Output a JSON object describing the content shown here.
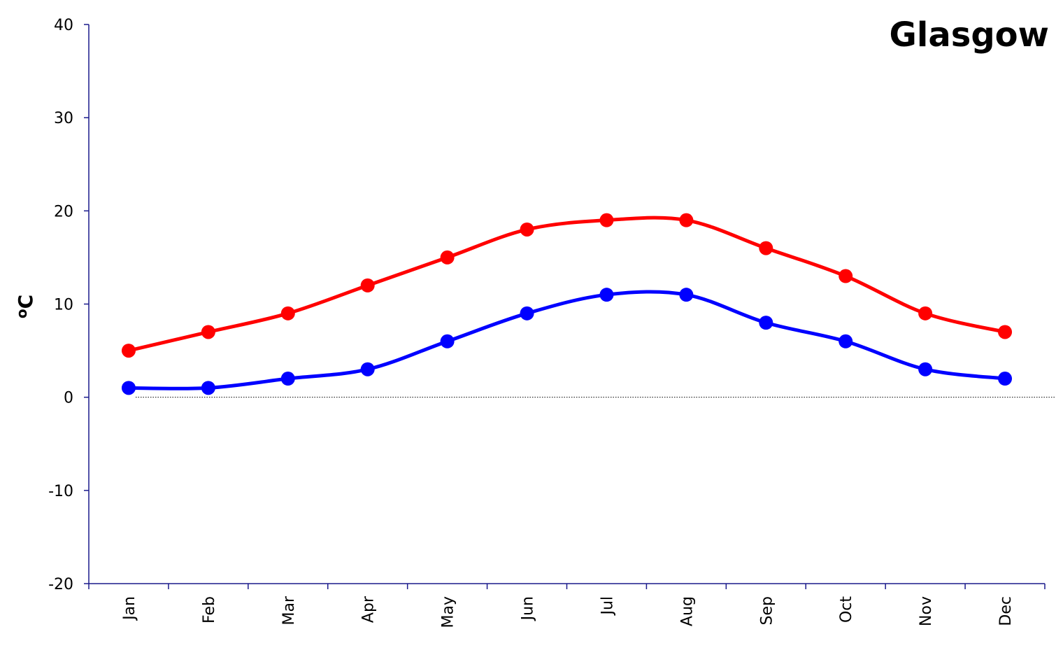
{
  "chart_data": {
    "type": "line",
    "title": "Glasgow",
    "xlabel": "",
    "ylabel": "oC",
    "ylim": [
      -20,
      40
    ],
    "yticks": [
      -20,
      -10,
      0,
      10,
      20,
      30,
      40
    ],
    "categories": [
      "Jan",
      "Feb",
      "Mar",
      "Apr",
      "May",
      "Jun",
      "Jul",
      "Aug",
      "Sep",
      "Oct",
      "Nov",
      "Dec"
    ],
    "series": [
      {
        "values": [
          5,
          7,
          9,
          12,
          15,
          18,
          19,
          19,
          16,
          13,
          9,
          7
        ],
        "color": "#ff0000"
      },
      {
        "values": [
          1,
          1,
          2,
          3,
          6,
          9,
          11,
          11,
          8,
          6,
          3,
          2
        ],
        "color": "#0000ff"
      }
    ],
    "reference_line": {
      "y": 0,
      "style": "dotted"
    },
    "grid": false,
    "legend": "none",
    "smoothed": true,
    "markers": "circle"
  }
}
